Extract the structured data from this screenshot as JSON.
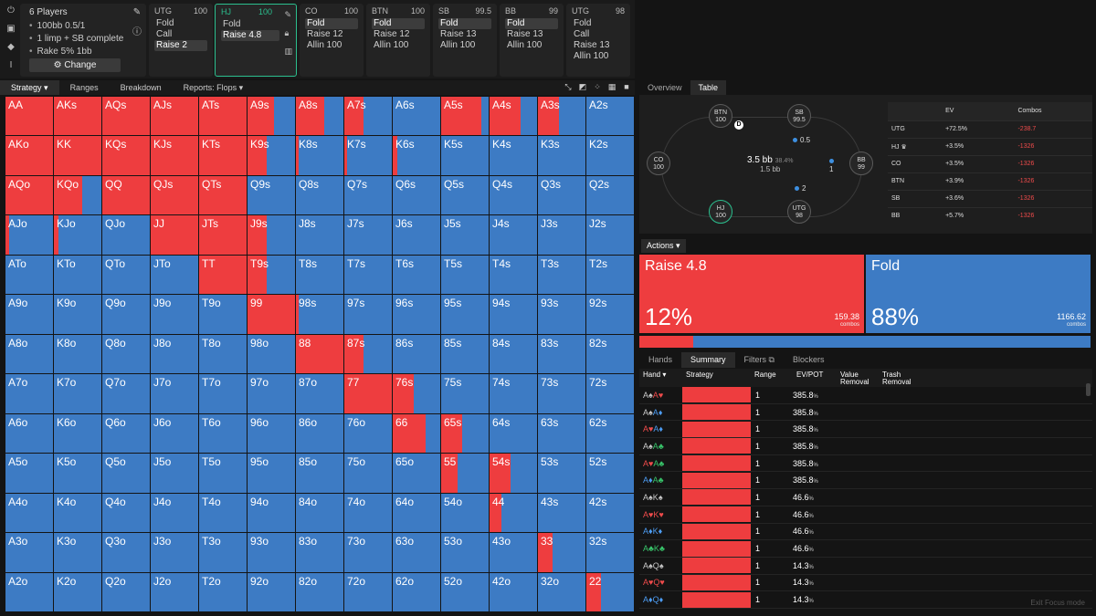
{
  "game": {
    "title": "6 Players",
    "lines": [
      "100bb 0.5/1",
      "1 limp + SB complete",
      "Rake 5% 1bb"
    ],
    "change_label": "Change"
  },
  "positions": [
    {
      "name": "UTG",
      "stack": "100",
      "actions": [
        "Fold",
        "Call",
        "Raise 2"
      ],
      "selected": 2,
      "active": false
    },
    {
      "name": "HJ",
      "stack": "100",
      "actions": [
        "Fold",
        "Raise 4.8"
      ],
      "selected": 1,
      "active": true
    },
    {
      "name": "CO",
      "stack": "100",
      "actions": [
        "Fold",
        "Raise 12",
        "Allin 100"
      ],
      "selected": 0,
      "active": false
    },
    {
      "name": "BTN",
      "stack": "100",
      "actions": [
        "Fold",
        "Raise 12",
        "Allin 100"
      ],
      "selected": 0,
      "active": false
    },
    {
      "name": "SB",
      "stack": "99.5",
      "actions": [
        "Fold",
        "Raise 13",
        "Allin 100"
      ],
      "selected": 0,
      "active": false
    },
    {
      "name": "BB",
      "stack": "99",
      "actions": [
        "Fold",
        "Raise 13",
        "Allin 100"
      ],
      "selected": 0,
      "active": false
    },
    {
      "name": "UTG",
      "stack": "98",
      "actions": [
        "Fold",
        "Call",
        "Raise 13",
        "Allin 100"
      ],
      "selected": -1,
      "active": false
    }
  ],
  "left_tabs": [
    "Strategy",
    "Ranges",
    "Breakdown",
    "Reports: Flops"
  ],
  "grid": {
    "labels": [
      [
        "AA",
        "AKs",
        "AQs",
        "AJs",
        "ATs",
        "A9s",
        "A8s",
        "A7s",
        "A6s",
        "A5s",
        "A4s",
        "A3s",
        "A2s"
      ],
      [
        "AKo",
        "KK",
        "KQs",
        "KJs",
        "KTs",
        "K9s",
        "K8s",
        "K7s",
        "K6s",
        "K5s",
        "K4s",
        "K3s",
        "K2s"
      ],
      [
        "AQo",
        "KQo",
        "QQ",
        "QJs",
        "QTs",
        "Q9s",
        "Q8s",
        "Q7s",
        "Q6s",
        "Q5s",
        "Q4s",
        "Q3s",
        "Q2s"
      ],
      [
        "AJo",
        "KJo",
        "QJo",
        "JJ",
        "JTs",
        "J9s",
        "J8s",
        "J7s",
        "J6s",
        "J5s",
        "J4s",
        "J3s",
        "J2s"
      ],
      [
        "ATo",
        "KTo",
        "QTo",
        "JTo",
        "TT",
        "T9s",
        "T8s",
        "T7s",
        "T6s",
        "T5s",
        "T4s",
        "T3s",
        "T2s"
      ],
      [
        "A9o",
        "K9o",
        "Q9o",
        "J9o",
        "T9o",
        "99",
        "98s",
        "97s",
        "96s",
        "95s",
        "94s",
        "93s",
        "92s"
      ],
      [
        "A8o",
        "K8o",
        "Q8o",
        "J8o",
        "T8o",
        "98o",
        "88",
        "87s",
        "86s",
        "85s",
        "84s",
        "83s",
        "82s"
      ],
      [
        "A7o",
        "K7o",
        "Q7o",
        "J7o",
        "T7o",
        "97o",
        "87o",
        "77",
        "76s",
        "75s",
        "74s",
        "73s",
        "72s"
      ],
      [
        "A6o",
        "K6o",
        "Q6o",
        "J6o",
        "T6o",
        "96o",
        "86o",
        "76o",
        "66",
        "65s",
        "64s",
        "63s",
        "62s"
      ],
      [
        "A5o",
        "K5o",
        "Q5o",
        "J5o",
        "T5o",
        "95o",
        "85o",
        "75o",
        "65o",
        "55",
        "54s",
        "53s",
        "52s"
      ],
      [
        "A4o",
        "K4o",
        "Q4o",
        "J4o",
        "T4o",
        "94o",
        "84o",
        "74o",
        "64o",
        "54o",
        "44",
        "43s",
        "42s"
      ],
      [
        "A3o",
        "K3o",
        "Q3o",
        "J3o",
        "T3o",
        "93o",
        "83o",
        "73o",
        "63o",
        "53o",
        "43o",
        "33",
        "32s"
      ],
      [
        "A2o",
        "K2o",
        "Q2o",
        "J2o",
        "T2o",
        "92o",
        "82o",
        "72o",
        "62o",
        "52o",
        "42o",
        "32o",
        "22"
      ]
    ],
    "raise_freq": [
      [
        1,
        1,
        1,
        1,
        1,
        0.55,
        0.6,
        0.4,
        0,
        0.85,
        0.65,
        0.45,
        0
      ],
      [
        1,
        1,
        1,
        1,
        1,
        0.4,
        0.05,
        0.05,
        0.1,
        0,
        0,
        0,
        0
      ],
      [
        1,
        0.6,
        1,
        1,
        1,
        0,
        0,
        0,
        0,
        0,
        0,
        0,
        0
      ],
      [
        0.08,
        0.1,
        0,
        1,
        1,
        0.4,
        0,
        0,
        0,
        0,
        0,
        0,
        0
      ],
      [
        0,
        0,
        0,
        0,
        1,
        0.4,
        0,
        0,
        0,
        0,
        0,
        0,
        0
      ],
      [
        0,
        0,
        0,
        0,
        0,
        1,
        0.05,
        0,
        0,
        0,
        0,
        0,
        0
      ],
      [
        0,
        0,
        0,
        0,
        0,
        0,
        1,
        0.4,
        0,
        0,
        0,
        0,
        0
      ],
      [
        0,
        0,
        0,
        0,
        0,
        0,
        0,
        1,
        0.45,
        0,
        0,
        0,
        0
      ],
      [
        0,
        0,
        0,
        0,
        0,
        0,
        0,
        0,
        0.7,
        0.45,
        0,
        0,
        0
      ],
      [
        0,
        0,
        0,
        0,
        0,
        0,
        0,
        0,
        0,
        0.35,
        0.45,
        0,
        0
      ],
      [
        0,
        0,
        0,
        0,
        0,
        0,
        0,
        0,
        0,
        0,
        0.25,
        0,
        0
      ],
      [
        0,
        0,
        0,
        0,
        0,
        0,
        0,
        0,
        0,
        0,
        0,
        0.3,
        0
      ],
      [
        0,
        0,
        0,
        0,
        0,
        0,
        0,
        0,
        0,
        0,
        0,
        0,
        0.3
      ]
    ],
    "colors": {
      "raise": "#ee3d3f",
      "fold": "#3d7bc4"
    }
  },
  "right_tabs": [
    "Overview",
    "Table"
  ],
  "table": {
    "seats": [
      {
        "name": "BTN",
        "stack": "100"
      },
      {
        "name": "SB",
        "stack": "99.5"
      },
      {
        "name": "BB",
        "stack": "99"
      },
      {
        "name": "UTG",
        "stack": "98"
      },
      {
        "name": "HJ",
        "stack": "100"
      },
      {
        "name": "CO",
        "stack": "100"
      }
    ],
    "dealer": "D",
    "pot": "3.5 bb",
    "pot_pct": "38.4%",
    "pot_sub": "1.5 bb",
    "chips": [
      "0.5",
      "1",
      "2"
    ]
  },
  "ev_table": {
    "headers": [
      "",
      "EV",
      "Combos"
    ],
    "rows": [
      {
        "pos": "UTG",
        "ev": "+72.5%",
        "combos": "-238.7"
      },
      {
        "pos": "HJ ♛",
        "ev": "+3.5%",
        "combos": "-1326"
      },
      {
        "pos": "CO",
        "ev": "+3.5%",
        "combos": "-1326"
      },
      {
        "pos": "BTN",
        "ev": "+3.9%",
        "combos": "-1326"
      },
      {
        "pos": "SB",
        "ev": "+3.6%",
        "combos": "-1326"
      },
      {
        "pos": "BB",
        "ev": "+5.7%",
        "combos": "-1326"
      }
    ]
  },
  "actions": {
    "header": "Actions",
    "items": [
      {
        "name": "Raise 4.8",
        "pct": "12%",
        "combos": "159.38",
        "combos_label": "combos",
        "freq": 0.12,
        "color": "#ee3d3f"
      },
      {
        "name": "Fold",
        "pct": "88%",
        "combos": "1166.62",
        "combos_label": "combos",
        "freq": 0.88,
        "color": "#3d7bc4"
      }
    ]
  },
  "bottom_tabs": [
    "Hands",
    "Summary",
    "Filters",
    "Blockers"
  ],
  "hands_table": {
    "headers": [
      "Hand",
      "Strategy",
      "Range",
      "EV/POT",
      "Value Removal",
      "Trash Removal"
    ],
    "rows": [
      {
        "cards": [
          [
            "A",
            "s"
          ],
          [
            "A",
            "h"
          ]
        ],
        "range": "1",
        "ev": "385.8",
        "unit": "%"
      },
      {
        "cards": [
          [
            "A",
            "s"
          ],
          [
            "A",
            "d"
          ]
        ],
        "range": "1",
        "ev": "385.8",
        "unit": "%"
      },
      {
        "cards": [
          [
            "A",
            "h"
          ],
          [
            "A",
            "d"
          ]
        ],
        "range": "1",
        "ev": "385.8",
        "unit": "%"
      },
      {
        "cards": [
          [
            "A",
            "s"
          ],
          [
            "A",
            "c"
          ]
        ],
        "range": "1",
        "ev": "385.8",
        "unit": "%"
      },
      {
        "cards": [
          [
            "A",
            "h"
          ],
          [
            "A",
            "c"
          ]
        ],
        "range": "1",
        "ev": "385.8",
        "unit": "%"
      },
      {
        "cards": [
          [
            "A",
            "d"
          ],
          [
            "A",
            "c"
          ]
        ],
        "range": "1",
        "ev": "385.8",
        "unit": "%"
      },
      {
        "cards": [
          [
            "A",
            "s"
          ],
          [
            "K",
            "s"
          ]
        ],
        "range": "1",
        "ev": "46.6",
        "unit": "%"
      },
      {
        "cards": [
          [
            "A",
            "h"
          ],
          [
            "K",
            "h"
          ]
        ],
        "range": "1",
        "ev": "46.6",
        "unit": "%"
      },
      {
        "cards": [
          [
            "A",
            "d"
          ],
          [
            "K",
            "d"
          ]
        ],
        "range": "1",
        "ev": "46.6",
        "unit": "%"
      },
      {
        "cards": [
          [
            "A",
            "c"
          ],
          [
            "K",
            "c"
          ]
        ],
        "range": "1",
        "ev": "46.6",
        "unit": "%"
      },
      {
        "cards": [
          [
            "A",
            "s"
          ],
          [
            "Q",
            "s"
          ]
        ],
        "range": "1",
        "ev": "14.3",
        "unit": "%"
      },
      {
        "cards": [
          [
            "A",
            "h"
          ],
          [
            "Q",
            "h"
          ]
        ],
        "range": "1",
        "ev": "14.3",
        "unit": "%"
      },
      {
        "cards": [
          [
            "A",
            "d"
          ],
          [
            "Q",
            "d"
          ]
        ],
        "range": "1",
        "ev": "14.3",
        "unit": "%"
      }
    ]
  },
  "exit_label": "Exit Focus mode"
}
